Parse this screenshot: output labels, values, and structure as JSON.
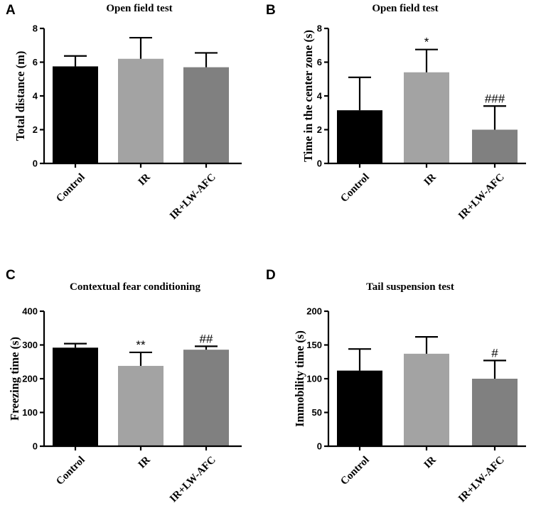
{
  "figure": {
    "colors": {
      "Control": "#000000",
      "IR": "#a3a3a3",
      "IR+LW-AFC": "#808080"
    }
  },
  "chart_data": [
    {
      "panel": "A",
      "type": "bar",
      "title": "Open field test",
      "ylabel": "Total distance (m)",
      "xlabel": "",
      "categories": [
        "Control",
        "IR",
        "IR+LW-AFC"
      ],
      "values": [
        5.75,
        6.2,
        5.7
      ],
      "errors": [
        0.62,
        1.25,
        0.85
      ],
      "annotations": [
        "",
        "",
        ""
      ],
      "ylim": [
        0,
        8
      ],
      "yticks": [
        0,
        2,
        4,
        6,
        8
      ]
    },
    {
      "panel": "B",
      "type": "bar",
      "title": "Open field test",
      "ylabel": "Time in the center zone (s)",
      "xlabel": "",
      "categories": [
        "Control",
        "IR",
        "IR+LW-AFC"
      ],
      "values": [
        3.15,
        5.4,
        2.0
      ],
      "errors": [
        1.95,
        1.35,
        1.4
      ],
      "annotations": [
        "",
        "*",
        "###"
      ],
      "ylim": [
        0,
        8
      ],
      "yticks": [
        0,
        2,
        4,
        6,
        8
      ]
    },
    {
      "panel": "C",
      "type": "bar",
      "title": "Contextual fear conditioning",
      "ylabel": "Freezing time (s)",
      "xlabel": "",
      "categories": [
        "Control",
        "IR",
        "IR+LW-AFC"
      ],
      "values": [
        292,
        238,
        286
      ],
      "errors": [
        12,
        40,
        10
      ],
      "annotations": [
        "",
        "**",
        "##"
      ],
      "ylim": [
        0,
        400
      ],
      "yticks": [
        0,
        100,
        200,
        300,
        400
      ]
    },
    {
      "panel": "D",
      "type": "bar",
      "title": "Tail suspension test",
      "ylabel": "Immobility time (s)",
      "xlabel": "",
      "categories": [
        "Control",
        "IR",
        "IR+LW-AFC"
      ],
      "values": [
        112,
        137,
        100
      ],
      "errors": [
        32,
        25,
        27
      ],
      "annotations": [
        "",
        "",
        "#"
      ],
      "ylim": [
        0,
        200
      ],
      "yticks": [
        0,
        50,
        100,
        150,
        200
      ]
    }
  ]
}
